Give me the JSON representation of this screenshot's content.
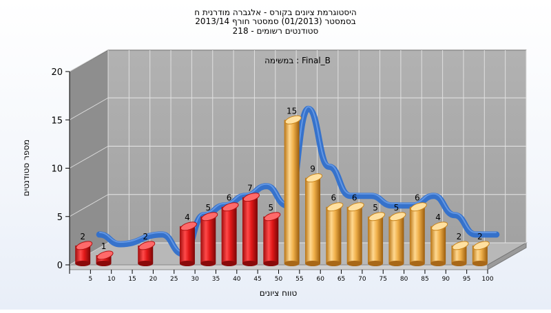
{
  "chart_data": {
    "type": "bar",
    "title_lines": [
      "היסטוגרמת ציונים בקורס - אלגברה מודרנית ח",
      "בסמסטר  (01/2013)  סמסטר חורף 2013/14",
      "סטודנטים רשומים - 218"
    ],
    "annotation": "במשימה : Final_B",
    "xlabel": "טווח ציונים",
    "ylabel": "מספר סטודנטים",
    "ylim": [
      0,
      20
    ],
    "y_ticks": [
      "0",
      "5",
      "10",
      "15",
      "20"
    ],
    "categories": [
      "5",
      "10",
      "20",
      "25",
      "30",
      "35",
      "40",
      "45",
      "50",
      "55",
      "60",
      "65",
      "70",
      "75",
      "80",
      "85",
      "90",
      "95",
      "100"
    ],
    "tick_labels": [
      "5",
      "10",
      "15",
      "20",
      "25",
      "30",
      "35",
      "40",
      "45",
      "50",
      "55",
      "60",
      "65",
      "70",
      "75",
      "80",
      "85",
      "90",
      "95",
      "100"
    ],
    "values": [
      2,
      1,
      2,
      0,
      4,
      5,
      6,
      7,
      5,
      15,
      9,
      6,
      6,
      5,
      5,
      6,
      4,
      2,
      2
    ],
    "bar_colors": [
      "red",
      "red",
      "red",
      "red",
      "red",
      "red",
      "red",
      "red",
      "red",
      "orange",
      "orange",
      "orange",
      "orange",
      "orange",
      "orange",
      "orange",
      "orange",
      "orange",
      "orange"
    ],
    "series": [
      {
        "name": "",
        "values": [
          2,
          1,
          2,
          0,
          4,
          5,
          6,
          7,
          5,
          15,
          9,
          6,
          6,
          5,
          5,
          6,
          4,
          2,
          2
        ]
      }
    ],
    "curve_color": "#2f6fcc",
    "colors": {
      "red_bar": "#e52222",
      "orange_bar": "#f0b04a",
      "back_wall": "#a8a8a8",
      "side_wall": "#8e8e8e",
      "floor": "#b8b8b8"
    },
    "grid": true
  }
}
